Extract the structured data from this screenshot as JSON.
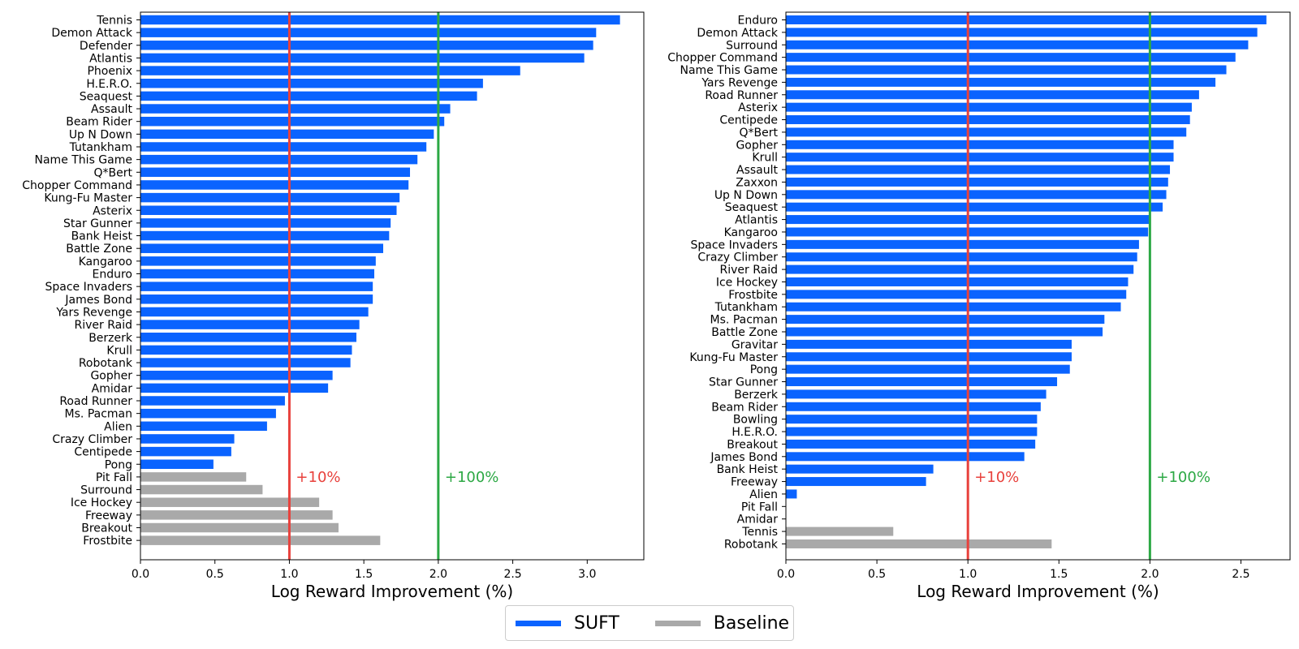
{
  "chart_data": [
    {
      "type": "bar",
      "orientation": "horizontal",
      "xlabel": "Log Reward Improvement (%)",
      "xlim": [
        0,
        3.38
      ],
      "xticks": [
        "0.0",
        "0.5",
        "1.0",
        "1.5",
        "2.0",
        "2.5",
        "3.0"
      ],
      "categories": [
        "Tennis",
        "Demon Attack",
        "Defender",
        "Atlantis",
        "Phoenix",
        "H.E.R.O.",
        "Seaquest",
        "Assault",
        "Beam Rider",
        "Up N Down",
        "Tutankham",
        "Name This Game",
        "Q*Bert",
        "Chopper Command",
        "Kung-Fu Master",
        "Asterix",
        "Star Gunner",
        "Bank Heist",
        "Battle Zone",
        "Kangaroo",
        "Enduro",
        "Space Invaders",
        "James Bond",
        "Yars Revenge",
        "River Raid",
        "Berzerk",
        "Krull",
        "Robotank",
        "Gopher",
        "Amidar",
        "Road Runner",
        "Ms. Pacman",
        "Alien",
        "Crazy Climber",
        "Centipede",
        "Pong",
        "Pit Fall",
        "Surround",
        "Ice Hockey",
        "Freeway",
        "Breakout",
        "Frostbite"
      ],
      "values": [
        3.22,
        3.06,
        3.04,
        2.98,
        2.55,
        2.3,
        2.26,
        2.08,
        2.04,
        1.97,
        1.92,
        1.86,
        1.81,
        1.8,
        1.74,
        1.72,
        1.68,
        1.67,
        1.63,
        1.58,
        1.57,
        1.56,
        1.56,
        1.53,
        1.47,
        1.45,
        1.42,
        1.41,
        1.29,
        1.26,
        0.97,
        0.91,
        0.85,
        0.63,
        0.61,
        0.49,
        0.71,
        0.82,
        1.2,
        1.29,
        1.33,
        1.61
      ],
      "series_by_bar": [
        "SUFT",
        "SUFT",
        "SUFT",
        "SUFT",
        "SUFT",
        "SUFT",
        "SUFT",
        "SUFT",
        "SUFT",
        "SUFT",
        "SUFT",
        "SUFT",
        "SUFT",
        "SUFT",
        "SUFT",
        "SUFT",
        "SUFT",
        "SUFT",
        "SUFT",
        "SUFT",
        "SUFT",
        "SUFT",
        "SUFT",
        "SUFT",
        "SUFT",
        "SUFT",
        "SUFT",
        "SUFT",
        "SUFT",
        "SUFT",
        "SUFT",
        "SUFT",
        "SUFT",
        "SUFT",
        "SUFT",
        "SUFT",
        "Baseline",
        "Baseline",
        "Baseline",
        "Baseline",
        "Baseline",
        "Baseline"
      ],
      "reference_lines": [
        {
          "x": 1.0,
          "label": "+10%",
          "color": "#e8413c"
        },
        {
          "x": 2.0,
          "label": "+100%",
          "color": "#2ca844"
        }
      ]
    },
    {
      "type": "bar",
      "orientation": "horizontal",
      "xlabel": "Log Reward Improvement (%)",
      "xlim": [
        0,
        2.77
      ],
      "xticks": [
        "0.0",
        "0.5",
        "1.0",
        "1.5",
        "2.0",
        "2.5"
      ],
      "categories": [
        "Enduro",
        "Demon Attack",
        "Surround",
        "Chopper Command",
        "Name This Game",
        "Yars Revenge",
        "Road Runner",
        "Asterix",
        "Centipede",
        "Q*Bert",
        "Gopher",
        "Krull",
        "Assault",
        "Zaxxon",
        "Up N Down",
        "Seaquest",
        "Atlantis",
        "Kangaroo",
        "Space Invaders",
        "Crazy Climber",
        "River Raid",
        "Ice Hockey",
        "Frostbite",
        "Tutankham",
        "Ms. Pacman",
        "Battle Zone",
        "Gravitar",
        "Kung-Fu Master",
        "Pong",
        "Star Gunner",
        "Berzerk",
        "Beam Rider",
        "Bowling",
        "H.E.R.O.",
        "Breakout",
        "James Bond",
        "Bank Heist",
        "Freeway",
        "Alien",
        "Pit Fall",
        "Amidar",
        "Tennis",
        "Robotank"
      ],
      "values": [
        2.64,
        2.59,
        2.54,
        2.47,
        2.42,
        2.36,
        2.27,
        2.23,
        2.22,
        2.2,
        2.13,
        2.13,
        2.11,
        2.1,
        2.09,
        2.07,
        2.0,
        1.99,
        1.94,
        1.93,
        1.91,
        1.88,
        1.87,
        1.84,
        1.75,
        1.74,
        1.57,
        1.57,
        1.56,
        1.49,
        1.43,
        1.4,
        1.38,
        1.38,
        1.37,
        1.31,
        0.81,
        0.77,
        0.06,
        0.0,
        0.0,
        0.59,
        1.46
      ],
      "series_by_bar": [
        "SUFT",
        "SUFT",
        "SUFT",
        "SUFT",
        "SUFT",
        "SUFT",
        "SUFT",
        "SUFT",
        "SUFT",
        "SUFT",
        "SUFT",
        "SUFT",
        "SUFT",
        "SUFT",
        "SUFT",
        "SUFT",
        "SUFT",
        "SUFT",
        "SUFT",
        "SUFT",
        "SUFT",
        "SUFT",
        "SUFT",
        "SUFT",
        "SUFT",
        "SUFT",
        "SUFT",
        "SUFT",
        "SUFT",
        "SUFT",
        "SUFT",
        "SUFT",
        "SUFT",
        "SUFT",
        "SUFT",
        "SUFT",
        "SUFT",
        "SUFT",
        "SUFT",
        "SUFT",
        "Baseline",
        "Baseline",
        "Baseline"
      ],
      "reference_lines": [
        {
          "x": 1.0,
          "label": "+10%",
          "color": "#e8413c"
        },
        {
          "x": 2.0,
          "label": "+100%",
          "color": "#2ca844"
        }
      ]
    }
  ],
  "legend": {
    "placement": "bottom-center",
    "items": [
      {
        "label": "SUFT",
        "color": "#0a63ff"
      },
      {
        "label": "Baseline",
        "color": "#a9a9a9"
      }
    ]
  },
  "colors": {
    "SUFT": "#0a63ff",
    "Baseline": "#a9a9a9"
  }
}
